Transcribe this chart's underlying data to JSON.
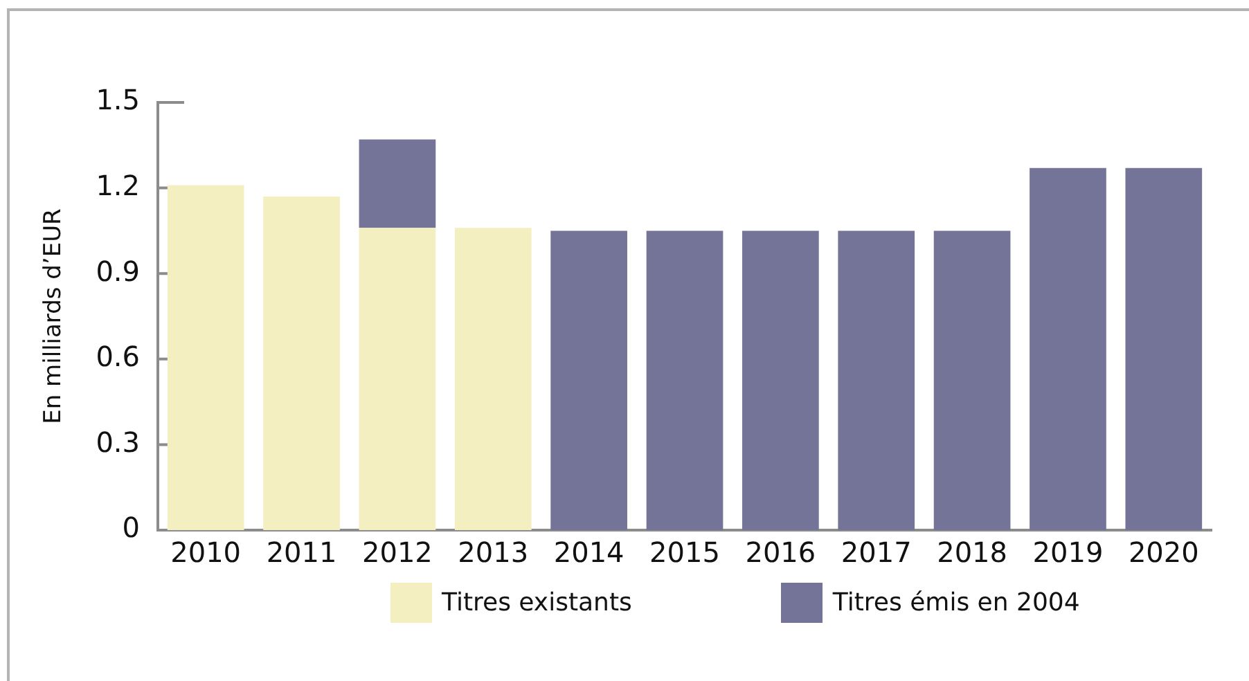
{
  "chart_data": {
    "type": "bar",
    "ylabel": "En milliards d’EUR",
    "categories": [
      "2010",
      "2011",
      "2012",
      "2013",
      "2014",
      "2015",
      "2016",
      "2017",
      "2018",
      "2019",
      "2020"
    ],
    "series": [
      {
        "name": "Titres existants",
        "color": "#f4efc1",
        "values": [
          1.21,
          1.17,
          1.06,
          1.06,
          null,
          null,
          null,
          null,
          null,
          null,
          null
        ]
      },
      {
        "name": "Titres émis en 2004",
        "color": "#747499",
        "values": [
          null,
          null,
          0.31,
          null,
          1.05,
          1.05,
          1.05,
          1.05,
          1.05,
          1.27,
          1.27
        ]
      }
    ],
    "stacked": true,
    "ylim": [
      0,
      1.5
    ],
    "yticks": [
      0,
      0.3,
      0.6,
      0.9,
      1.2,
      1.5
    ],
    "grid": false,
    "legend": "bottom"
  }
}
